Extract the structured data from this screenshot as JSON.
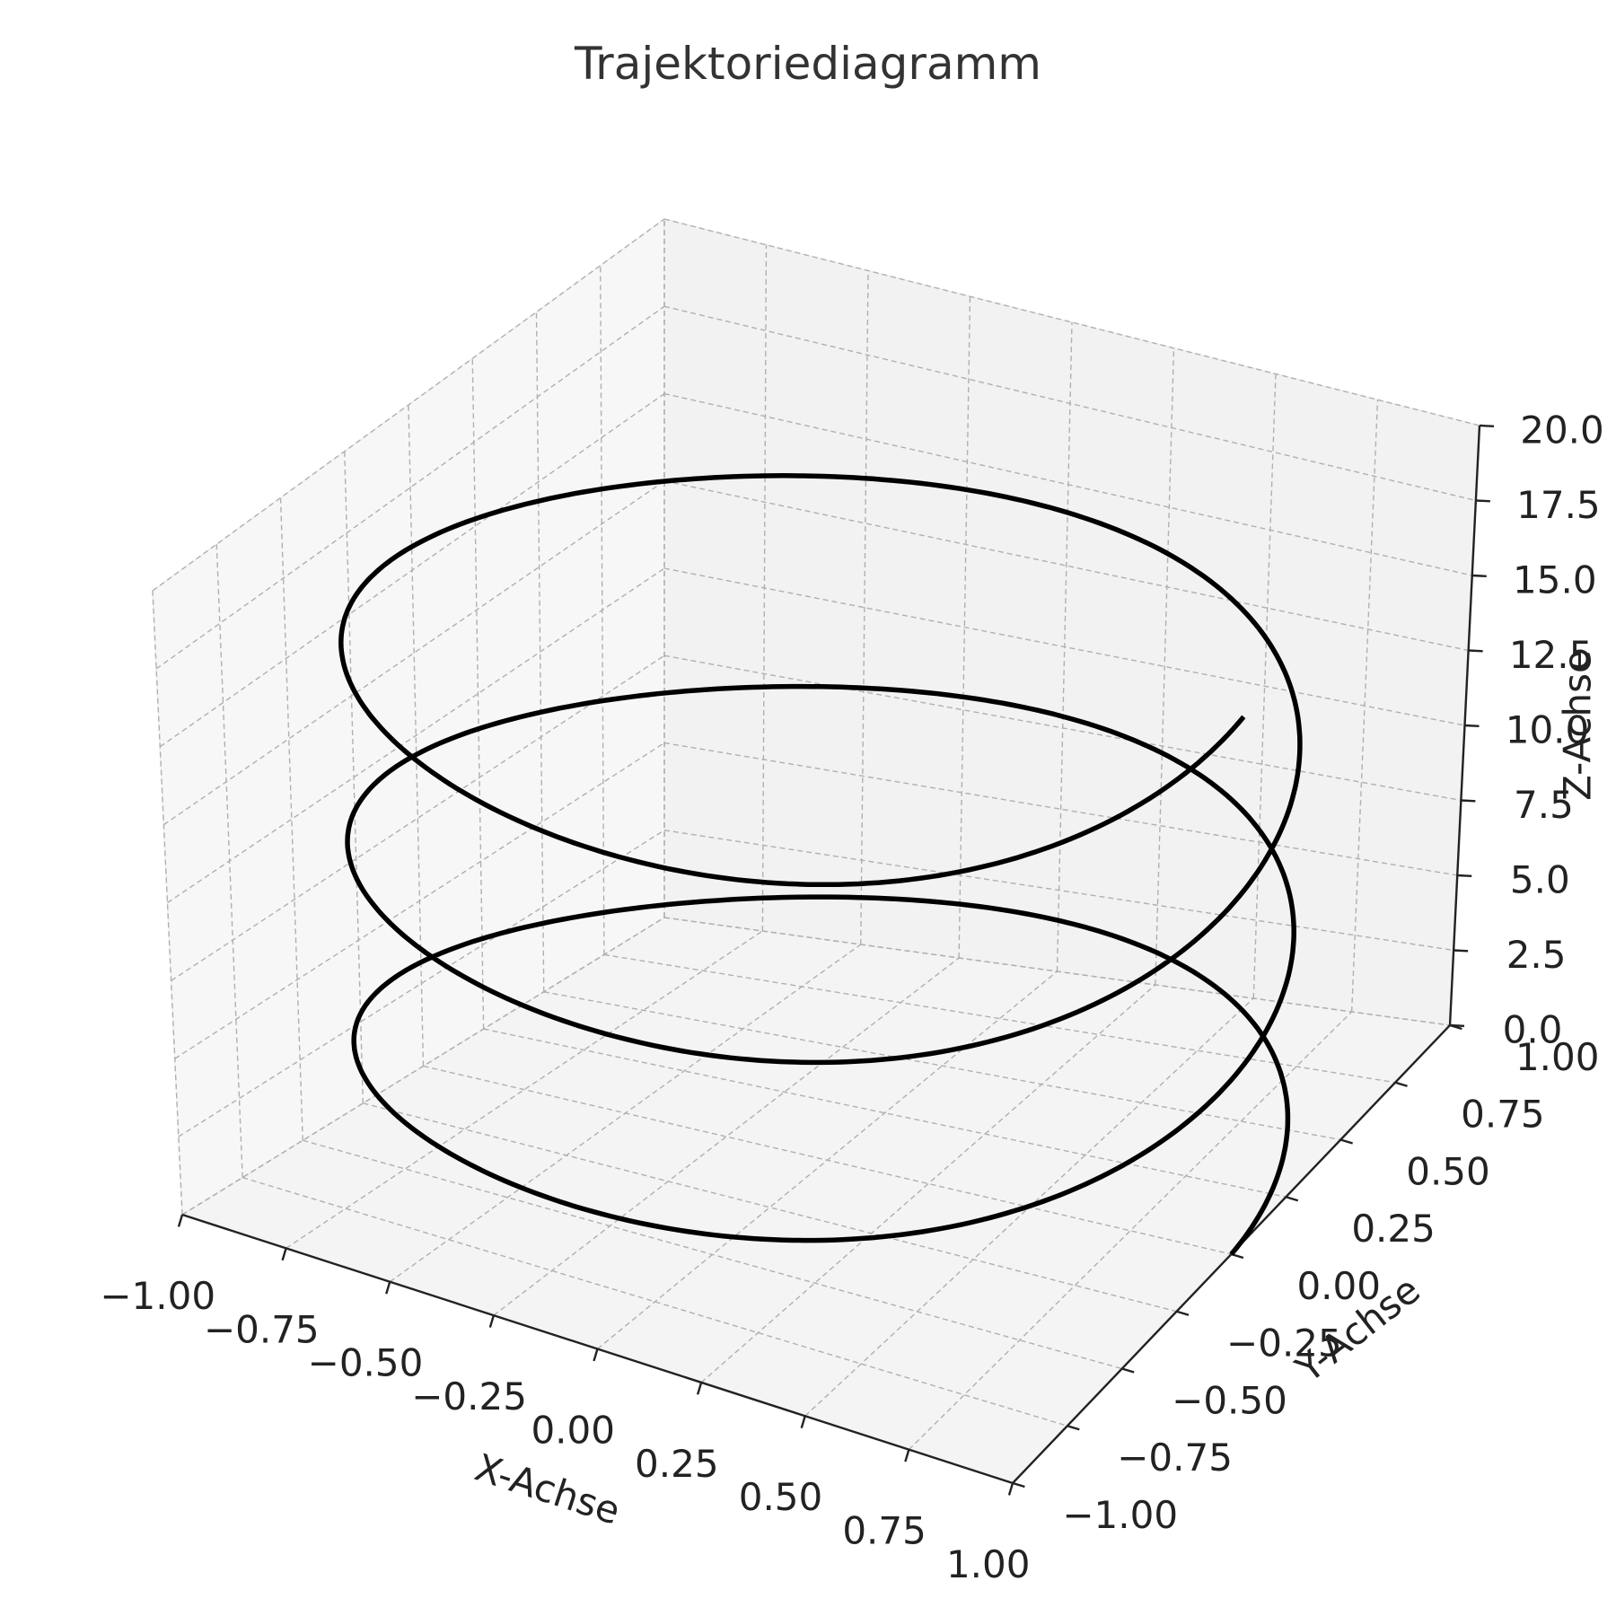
{
  "chart_data": {
    "type": "line",
    "projection": "3d",
    "title": "Trajektoriediagramm",
    "xlabel": "X-Achse",
    "ylabel": "Y-Achse",
    "zlabel": "Z-Achse",
    "xlim": [
      -1.0,
      1.0
    ],
    "ylim": [
      -1.0,
      1.0
    ],
    "zlim": [
      0.0,
      20.0
    ],
    "x_ticks": [
      "−1.00",
      "−0.75",
      "−0.50",
      "−0.25",
      "0.00",
      "0.25",
      "0.50",
      "0.75",
      "1.00"
    ],
    "y_ticks": [
      "−1.00",
      "−0.75",
      "−0.50",
      "−0.25",
      "0.00",
      "0.25",
      "0.50",
      "0.75",
      "1.00"
    ],
    "z_ticks": [
      "0.0",
      "2.5",
      "5.0",
      "7.5",
      "10.0",
      "12.5",
      "15.0",
      "17.5",
      "20.0"
    ],
    "grid": true,
    "series": [
      {
        "color": "#000000",
        "curve": "helix",
        "x_expression": "cos(t)",
        "y_expression": "sin(t)",
        "z_expression": "t",
        "t_range": [
          0,
          18.85
        ]
      }
    ]
  }
}
